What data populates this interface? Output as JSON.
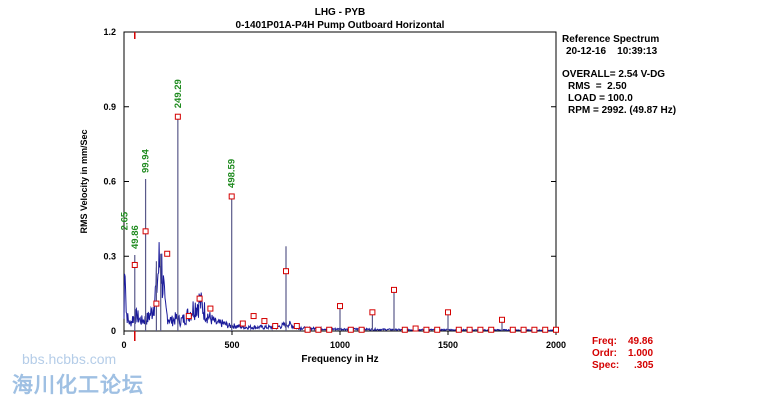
{
  "header": {
    "title_line1": "LHG  - PYB",
    "title_line2": "0-1401P01A-P4H   Pump Outboard Horizontal"
  },
  "info_panel": {
    "reference": "Reference Spectrum",
    "datetime": "20-12-16    10:39:13",
    "overall": "OVERALL= 2.54 V-DG",
    "rms": "RMS  =  2.50",
    "load": "LOAD = 100.0",
    "rpm": "RPM = 2992. (49.87 Hz)"
  },
  "cursor_panel": {
    "freq_label": "Freq:",
    "freq_value": "49.86",
    "ordr_label": "Ordr:",
    "ordr_value": "1.000",
    "spec_label": "Spec:",
    "spec_value": ".305"
  },
  "watermark": {
    "line1": "bbs.hcbbs.com",
    "line2": "海川化工论坛"
  },
  "colors": {
    "spectrum": "#1a1a9a",
    "peak_marker": "#d40000",
    "peak_label": "#1e8a1e",
    "cursor_text": "#d40000"
  },
  "chart_data": {
    "type": "line",
    "xlabel": "Frequency in Hz",
    "ylabel": "RMS Velocity in mm/Sec",
    "xlim": [
      0,
      2000
    ],
    "ylim": [
      0,
      1.2
    ],
    "xticks": [
      0,
      500,
      1000,
      1500,
      2000
    ],
    "yticks": [
      0,
      0.3,
      0.6,
      0.9,
      1.2
    ],
    "ytick_labels": [
      "0",
      "0.3",
      "0.6",
      "0.9",
      "1.2"
    ],
    "grid": false,
    "cursor_x": 49.86,
    "labeled_peaks": [
      {
        "freq": 2.65,
        "label": "2.65",
        "amp": 0.38
      },
      {
        "freq": 49.86,
        "label": "49.86",
        "amp": 0.305
      },
      {
        "freq": 99.94,
        "label": "99.94",
        "amp": 0.61
      },
      {
        "freq": 249.29,
        "label": "249.29",
        "amp": 0.87
      },
      {
        "freq": 498.59,
        "label": "498.59",
        "amp": 0.55
      }
    ],
    "spectral_lines": [
      {
        "freq": 49.86,
        "amp": 0.305
      },
      {
        "freq": 99.94,
        "amp": 0.61
      },
      {
        "freq": 150,
        "amp": 0.28
      },
      {
        "freq": 170,
        "amp": 0.31
      },
      {
        "freq": 249.29,
        "amp": 0.87
      },
      {
        "freq": 498.59,
        "amp": 0.55
      },
      {
        "freq": 750,
        "amp": 0.34
      },
      {
        "freq": 1000,
        "amp": 0.1
      },
      {
        "freq": 1150,
        "amp": 0.08
      },
      {
        "freq": 1250,
        "amp": 0.17
      },
      {
        "freq": 1500,
        "amp": 0.075
      },
      {
        "freq": 1750,
        "amp": 0.045
      }
    ],
    "peak_markers": [
      {
        "freq": 49.86,
        "amp": 0.265
      },
      {
        "freq": 99.94,
        "amp": 0.4
      },
      {
        "freq": 150,
        "amp": 0.11
      },
      {
        "freq": 200,
        "amp": 0.31
      },
      {
        "freq": 249.29,
        "amp": 0.86
      },
      {
        "freq": 300,
        "amp": 0.06
      },
      {
        "freq": 350,
        "amp": 0.13
      },
      {
        "freq": 400,
        "amp": 0.09
      },
      {
        "freq": 498.59,
        "amp": 0.54
      },
      {
        "freq": 550,
        "amp": 0.03
      },
      {
        "freq": 600,
        "amp": 0.06
      },
      {
        "freq": 650,
        "amp": 0.04
      },
      {
        "freq": 700,
        "amp": 0.02
      },
      {
        "freq": 750,
        "amp": 0.24
      },
      {
        "freq": 800,
        "amp": 0.02
      },
      {
        "freq": 850,
        "amp": 0.005
      },
      {
        "freq": 900,
        "amp": 0.005
      },
      {
        "freq": 950,
        "amp": 0.005
      },
      {
        "freq": 1000,
        "amp": 0.1
      },
      {
        "freq": 1050,
        "amp": 0.005
      },
      {
        "freq": 1100,
        "amp": 0.005
      },
      {
        "freq": 1150,
        "amp": 0.075
      },
      {
        "freq": 1250,
        "amp": 0.165
      },
      {
        "freq": 1300,
        "amp": 0.005
      },
      {
        "freq": 1350,
        "amp": 0.01
      },
      {
        "freq": 1400,
        "amp": 0.005
      },
      {
        "freq": 1450,
        "amp": 0.005
      },
      {
        "freq": 1500,
        "amp": 0.075
      },
      {
        "freq": 1550,
        "amp": 0.005
      },
      {
        "freq": 1600,
        "amp": 0.005
      },
      {
        "freq": 1650,
        "amp": 0.005
      },
      {
        "freq": 1700,
        "amp": 0.005
      },
      {
        "freq": 1750,
        "amp": 0.045
      },
      {
        "freq": 1800,
        "amp": 0.005
      },
      {
        "freq": 1850,
        "amp": 0.005
      },
      {
        "freq": 1900,
        "amp": 0.005
      },
      {
        "freq": 1950,
        "amp": 0.005
      },
      {
        "freq": 2000,
        "amp": 0.005
      }
    ],
    "noise_floor": [
      [
        0,
        0.05
      ],
      [
        5,
        0.38
      ],
      [
        10,
        0.08
      ],
      [
        20,
        0.04
      ],
      [
        30,
        0.03
      ],
      [
        40,
        0.05
      ],
      [
        60,
        0.06
      ],
      [
        80,
        0.04
      ],
      [
        110,
        0.05
      ],
      [
        130,
        0.08
      ],
      [
        150,
        0.17
      ],
      [
        160,
        0.25
      ],
      [
        170,
        0.29
      ],
      [
        180,
        0.2
      ],
      [
        190,
        0.09
      ],
      [
        200,
        0.06
      ],
      [
        220,
        0.04
      ],
      [
        240,
        0.05
      ],
      [
        260,
        0.04
      ],
      [
        280,
        0.05
      ],
      [
        300,
        0.07
      ],
      [
        320,
        0.09
      ],
      [
        340,
        0.11
      ],
      [
        350,
        0.12
      ],
      [
        360,
        0.1
      ],
      [
        380,
        0.07
      ],
      [
        400,
        0.05
      ],
      [
        430,
        0.03
      ],
      [
        460,
        0.03
      ],
      [
        490,
        0.02
      ],
      [
        520,
        0.02
      ],
      [
        560,
        0.015
      ],
      [
        600,
        0.015
      ],
      [
        650,
        0.015
      ],
      [
        700,
        0.015
      ],
      [
        730,
        0.02
      ],
      [
        760,
        0.03
      ],
      [
        790,
        0.015
      ],
      [
        850,
        0.01
      ],
      [
        900,
        0.01
      ],
      [
        950,
        0.008
      ],
      [
        1000,
        0.008
      ],
      [
        1100,
        0.007
      ],
      [
        1200,
        0.006
      ],
      [
        1300,
        0.005
      ],
      [
        1400,
        0.005
      ],
      [
        1500,
        0.005
      ],
      [
        1600,
        0.004
      ],
      [
        1700,
        0.004
      ],
      [
        1800,
        0.004
      ],
      [
        1900,
        0.003
      ],
      [
        2000,
        0.003
      ]
    ]
  }
}
